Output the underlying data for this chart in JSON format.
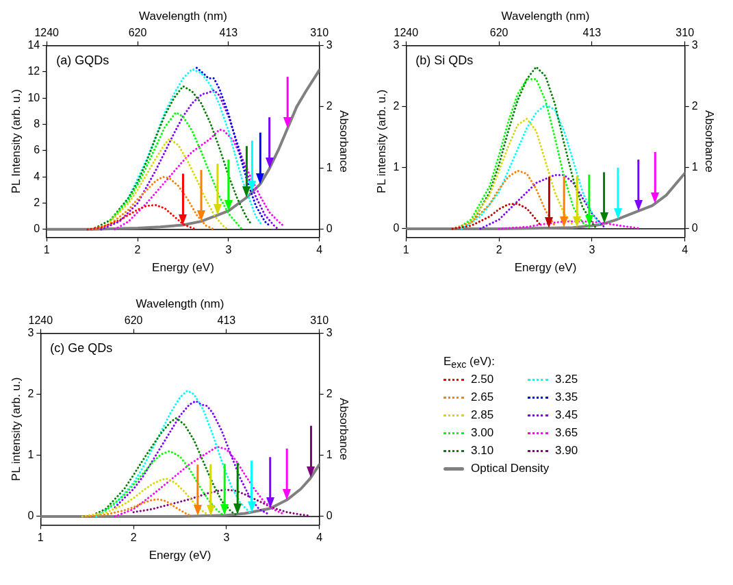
{
  "chart_data": [
    {
      "type": "line",
      "title": "(a) GQDs",
      "xlabel": "Energy (eV)",
      "x2label": "Wavelength (nm)",
      "ylabel": "PL Intensity (arb. u.)",
      "y2label": "Absorbance",
      "line_style": "dotted",
      "annotations": [
        "1240",
        "620",
        "413",
        "310"
      ],
      "xlim": [
        1,
        4
      ],
      "xticks": [
        1,
        2,
        3,
        4
      ],
      "ylim": [
        -0.6,
        14
      ],
      "yticks": [
        0,
        2,
        4,
        6,
        8,
        10,
        12,
        14
      ],
      "y2lim": [
        -0.13,
        3
      ],
      "y2ticks": [
        0,
        1,
        2,
        3
      ],
      "series": [
        {
          "color": "#ff0000",
          "x": [
            1.45,
            1.6,
            1.8,
            1.9,
            2.0,
            2.1,
            2.2,
            2.3,
            2.4,
            2.5,
            2.6,
            2.65
          ],
          "values": [
            0,
            0.15,
            0.7,
            1.1,
            1.5,
            1.8,
            1.85,
            1.6,
            1.0,
            0.4,
            0.1,
            0
          ]
        },
        {
          "color": "#ff8000",
          "x": [
            1.5,
            1.7,
            1.9,
            2.0,
            2.1,
            2.2,
            2.28,
            2.35,
            2.45,
            2.55,
            2.65,
            2.75,
            2.84
          ],
          "values": [
            0,
            0.4,
            1.5,
            2.3,
            3.0,
            3.7,
            4.0,
            3.9,
            3.3,
            2.3,
            1.1,
            0.3,
            0
          ]
        },
        {
          "color": "#d8d800",
          "x": [
            1.7,
            1.9,
            2.0,
            2.1,
            2.2,
            2.3,
            2.35,
            2.45,
            2.55,
            2.65,
            2.75,
            2.85,
            2.95,
            3.0
          ],
          "values": [
            0.6,
            2.0,
            3.0,
            4.2,
            5.4,
            6.5,
            6.9,
            6.4,
            5.2,
            3.8,
            2.3,
            1.0,
            0.2,
            0
          ]
        },
        {
          "color": "#00ff00",
          "x": [
            1.7,
            1.9,
            2.0,
            2.1,
            2.2,
            2.3,
            2.42,
            2.5,
            2.6,
            2.7,
            2.8,
            2.9,
            3.0,
            3.1,
            3.15
          ],
          "values": [
            0.7,
            2.2,
            3.4,
            4.8,
            6.3,
            7.8,
            8.9,
            8.6,
            7.5,
            5.9,
            4.2,
            2.5,
            1.2,
            0.4,
            0
          ]
        },
        {
          "color": "#008000",
          "x": [
            1.5,
            1.7,
            1.9,
            2.0,
            2.1,
            2.2,
            2.3,
            2.4,
            2.5,
            2.6,
            2.7,
            2.8,
            2.9,
            3.0,
            3.1,
            3.2,
            3.25
          ],
          "values": [
            0,
            0.7,
            2.4,
            3.6,
            5.2,
            7.0,
            8.7,
            10.0,
            10.9,
            10.5,
            9.6,
            8.1,
            6.2,
            4.1,
            2.3,
            0.9,
            0.4
          ]
        },
        {
          "color": "#00ffff",
          "x": [
            1.8,
            1.9,
            2.1,
            2.3,
            2.4,
            2.5,
            2.6,
            2.7,
            2.8,
            2.9,
            3.0,
            3.1,
            3.15,
            3.3,
            3.37
          ],
          "values": [
            1.5,
            2.4,
            5.3,
            8.9,
            10.3,
            11.5,
            12.2,
            11.9,
            11.0,
            9.5,
            7.5,
            5.0,
            3.8,
            1.0,
            0.3
          ]
        },
        {
          "color": "#0000ff",
          "x": [
            2.65,
            2.72,
            2.78,
            2.84,
            2.9,
            3.0,
            3.1,
            3.2,
            3.3,
            3.4,
            3.45
          ],
          "values": [
            12.3,
            11.9,
            11.5,
            11.5,
            10.7,
            8.8,
            6.3,
            3.8,
            1.8,
            0.6,
            0.3
          ]
        },
        {
          "color": "#8000ff",
          "x": [
            1.6,
            1.8,
            2.0,
            2.2,
            2.4,
            2.5,
            2.6,
            2.71,
            2.78,
            2.84,
            2.9,
            3.0,
            3.1,
            3.2,
            3.3,
            3.4,
            3.5,
            3.55
          ],
          "values": [
            0,
            0.6,
            2.0,
            4.5,
            7.3,
            8.6,
            9.6,
            10.3,
            10.4,
            10.6,
            10.2,
            8.6,
            6.5,
            4.3,
            2.5,
            1.1,
            0.3,
            0
          ]
        },
        {
          "color": "#ff00ff",
          "x": [
            1.75,
            1.9,
            2.1,
            2.3,
            2.5,
            2.6,
            2.7,
            2.8,
            2.9,
            2.95,
            3.05,
            3.15,
            3.25,
            3.35,
            3.45,
            3.55,
            3.6
          ],
          "values": [
            0,
            0.6,
            2.0,
            3.6,
            5.2,
            5.9,
            6.4,
            6.9,
            7.6,
            7.5,
            6.8,
            5.4,
            3.9,
            2.5,
            1.3,
            0.6,
            0.3
          ]
        },
        {
          "color": "#808080",
          "axis": "y2",
          "line_style": "solid",
          "x": [
            1.0,
            1.5,
            2.0,
            2.25,
            2.5,
            2.7,
            3.0,
            3.2,
            3.35,
            3.45,
            3.55,
            3.75,
            3.85,
            4.0
          ],
          "values": [
            0,
            0,
            0.02,
            0.04,
            0.07,
            0.13,
            0.3,
            0.52,
            0.74,
            0.99,
            1.3,
            2.0,
            2.25,
            2.6
          ]
        }
      ],
      "ref_lines": [
        {
          "axis": "y",
          "value": 0,
          "color": "#000000"
        },
        {
          "axis": "x",
          "value": 2.5,
          "color": "#ff0000"
        },
        {
          "axis": "x",
          "value": 2.7,
          "color": "#ff8000"
        },
        {
          "axis": "x",
          "value": 2.88,
          "color": "#d8d800"
        },
        {
          "axis": "x",
          "value": 3.0,
          "color": "#00ff00"
        },
        {
          "axis": "x",
          "value": 3.2,
          "color": "#008000"
        },
        {
          "axis": "x",
          "value": 3.26,
          "color": "#00ffff"
        },
        {
          "axis": "x",
          "value": 3.35,
          "color": "#0000ff"
        },
        {
          "axis": "x",
          "value": 3.45,
          "color": "#8000ff"
        },
        {
          "axis": "x",
          "value": 3.65,
          "color": "#ff00ff"
        }
      ]
    },
    {
      "type": "line",
      "title": "(b) Si QDs",
      "xlabel": "Energy (eV)",
      "x2label": "Wavelength (nm)",
      "ylabel": "PL intensity (arb. u.)",
      "y2label": "Absorbance",
      "line_style": "dotted",
      "annotations": [
        "1240",
        "620",
        "413",
        "310"
      ],
      "xlim": [
        1,
        4
      ],
      "xticks": [
        1,
        2,
        3,
        4
      ],
      "ylim": [
        -0.14,
        3
      ],
      "yticks": [
        0,
        1,
        2,
        3
      ],
      "y2lim": [
        -0.14,
        3
      ],
      "y2ticks": [
        0,
        1,
        2,
        3
      ],
      "series": [
        {
          "color": "#c00000",
          "x": [
            1.5,
            1.7,
            1.9,
            2.0,
            2.1,
            2.2,
            2.3,
            2.4,
            2.45
          ],
          "values": [
            0,
            0.05,
            0.2,
            0.32,
            0.4,
            0.41,
            0.33,
            0.15,
            0.05
          ]
        },
        {
          "color": "#ff8000",
          "x": [
            1.5,
            1.7,
            1.9,
            2.0,
            2.1,
            2.2,
            2.3,
            2.4,
            2.5,
            2.6
          ],
          "values": [
            0,
            0.1,
            0.4,
            0.65,
            0.85,
            0.95,
            0.9,
            0.65,
            0.3,
            0.05
          ]
        },
        {
          "color": "#d8d800",
          "x": [
            1.7,
            1.9,
            2.0,
            2.1,
            2.2,
            2.3,
            2.4,
            2.5,
            2.6,
            2.7,
            2.8
          ],
          "values": [
            0.12,
            0.55,
            0.95,
            1.35,
            1.7,
            1.8,
            1.6,
            1.1,
            0.6,
            0.25,
            0.05
          ]
        },
        {
          "color": "#00ff00",
          "x": [
            1.6,
            1.7,
            1.9,
            2.0,
            2.1,
            2.2,
            2.3,
            2.4,
            2.5,
            2.6,
            2.7,
            2.8,
            2.9,
            3.0
          ],
          "values": [
            0.05,
            0.15,
            0.7,
            1.2,
            1.75,
            2.2,
            2.45,
            2.45,
            2.1,
            1.5,
            0.85,
            0.35,
            0.1,
            0
          ]
        },
        {
          "color": "#008000",
          "x": [
            1.75,
            1.9,
            2.0,
            2.1,
            2.2,
            2.3,
            2.4,
            2.5,
            2.6,
            2.7,
            2.8,
            2.9,
            3.0,
            3.05
          ],
          "values": [
            0.2,
            0.6,
            1.05,
            1.6,
            2.1,
            2.45,
            2.65,
            2.5,
            2.05,
            1.4,
            0.8,
            0.35,
            0.1,
            0
          ]
        },
        {
          "color": "#00ffff",
          "x": [
            1.6,
            1.8,
            2.0,
            2.1,
            2.2,
            2.3,
            2.4,
            2.5,
            2.6,
            2.7,
            2.8,
            2.9,
            3.0,
            3.1
          ],
          "values": [
            0,
            0.2,
            0.6,
            0.95,
            1.3,
            1.65,
            1.9,
            2.03,
            1.95,
            1.6,
            1.1,
            0.6,
            0.25,
            0.05
          ]
        },
        {
          "color": "#8000ff",
          "x": [
            1.8,
            2.0,
            2.2,
            2.4,
            2.6,
            2.7,
            2.8,
            2.9,
            3.0,
            3.1,
            3.15
          ],
          "values": [
            0,
            0.15,
            0.45,
            0.75,
            0.88,
            0.88,
            0.75,
            0.5,
            0.25,
            0.08,
            0
          ]
        },
        {
          "color": "#ff00ff",
          "x": [
            2.0,
            2.3,
            2.5,
            2.7,
            2.9,
            3.1,
            3.3,
            3.5
          ],
          "values": [
            0,
            0.03,
            0.08,
            0.12,
            0.12,
            0.1,
            0.05,
            0.01
          ]
        },
        {
          "color": "#808080",
          "axis": "y2",
          "line_style": "solid",
          "x": [
            1.0,
            2.0,
            2.5,
            2.8,
            3.0,
            3.1,
            3.25,
            3.45,
            3.65,
            3.8,
            4.0
          ],
          "values": [
            0,
            0,
            0.01,
            0.02,
            0.05,
            0.07,
            0.14,
            0.26,
            0.38,
            0.55,
            0.91
          ]
        }
      ],
      "ref_lines": [
        {
          "axis": "y",
          "value": 0,
          "color": "#000000"
        },
        {
          "axis": "x",
          "value": 2.54,
          "color": "#c00000"
        },
        {
          "axis": "x",
          "value": 2.7,
          "color": "#ff8000"
        },
        {
          "axis": "x",
          "value": 2.84,
          "color": "#d8d800"
        },
        {
          "axis": "x",
          "value": 2.97,
          "color": "#00ff00"
        },
        {
          "axis": "x",
          "value": 3.13,
          "color": "#008000"
        },
        {
          "axis": "x",
          "value": 3.28,
          "color": "#00ffff"
        },
        {
          "axis": "x",
          "value": 3.5,
          "color": "#8000ff"
        },
        {
          "axis": "x",
          "value": 3.68,
          "color": "#ff00ff"
        }
      ]
    },
    {
      "type": "line",
      "title": "(c) Ge QDs",
      "xlabel": "Energy (eV)",
      "x2label": "Wavelength (nm)",
      "ylabel": "PL intensity (arb. u.)",
      "y2label": "Absorbance",
      "line_style": "dotted",
      "legend": "right",
      "legend_title": "E$_{exc}$ (eV):",
      "annotations": [
        "1240",
        "620",
        "413",
        "310"
      ],
      "xlim": [
        1,
        4
      ],
      "xticks": [
        1,
        2,
        3,
        4
      ],
      "ylim": [
        -0.14,
        3
      ],
      "yticks": [
        0,
        1,
        2,
        3
      ],
      "y2lim": [
        -0.14,
        3
      ],
      "y2ticks": [
        0,
        1,
        2,
        3
      ],
      "series": [
        {
          "name": "2.50",
          "color": "#ff0000"
        },
        {
          "name": "2.65",
          "color": "#ff8000",
          "x": [
            1.5,
            1.7,
            1.9,
            2.0,
            2.1,
            2.2,
            2.27,
            2.35,
            2.45,
            2.55,
            2.6
          ],
          "values": [
            0,
            0.03,
            0.1,
            0.15,
            0.22,
            0.27,
            0.28,
            0.25,
            0.15,
            0.06,
            0.02
          ]
        },
        {
          "name": "2.85",
          "color": "#d8d800",
          "x": [
            1.45,
            1.7,
            1.9,
            2.0,
            2.1,
            2.2,
            2.3,
            2.35,
            2.45,
            2.55,
            2.65,
            2.75,
            2.8
          ],
          "values": [
            0,
            0.06,
            0.2,
            0.3,
            0.42,
            0.53,
            0.6,
            0.62,
            0.55,
            0.4,
            0.22,
            0.08,
            0.03
          ]
        },
        {
          "name": "3.00",
          "color": "#00ff00",
          "x": [
            1.7,
            1.9,
            2.0,
            2.1,
            2.2,
            2.3,
            2.39,
            2.5,
            2.6,
            2.7,
            2.8,
            2.9,
            2.95
          ],
          "values": [
            0.1,
            0.35,
            0.52,
            0.7,
            0.88,
            1.02,
            1.07,
            0.98,
            0.78,
            0.52,
            0.28,
            0.1,
            0.04
          ]
        },
        {
          "name": "3.10",
          "color": "#008000",
          "x": [
            1.6,
            1.7,
            1.9,
            2.0,
            2.1,
            2.2,
            2.3,
            2.4,
            2.46,
            2.55,
            2.65,
            2.75,
            2.85,
            2.95,
            3.05,
            3.1
          ],
          "values": [
            0.05,
            0.12,
            0.45,
            0.68,
            0.92,
            1.15,
            1.37,
            1.55,
            1.61,
            1.5,
            1.25,
            0.9,
            0.55,
            0.25,
            0.08,
            0.03
          ]
        },
        {
          "name": "3.25",
          "color": "#00ffff",
          "x": [
            1.6,
            1.8,
            2.0,
            2.1,
            2.2,
            2.3,
            2.4,
            2.5,
            2.58,
            2.65,
            2.75,
            2.85,
            2.95,
            3.05,
            3.15,
            3.25
          ],
          "values": [
            0,
            0.2,
            0.55,
            0.8,
            1.1,
            1.4,
            1.7,
            1.95,
            2.06,
            2.0,
            1.75,
            1.35,
            0.9,
            0.5,
            0.22,
            0.07
          ]
        },
        {
          "name": "3.35",
          "color": "#0000ff"
        },
        {
          "name": "3.45",
          "color": "#8000ff",
          "x": [
            1.8,
            2.0,
            2.1,
            2.2,
            2.3,
            2.4,
            2.5,
            2.6,
            2.67,
            2.73,
            2.79,
            2.85,
            2.95,
            3.05,
            3.15,
            3.25,
            3.35,
            3.45
          ],
          "values": [
            0.15,
            0.45,
            0.65,
            0.9,
            1.15,
            1.4,
            1.65,
            1.83,
            1.89,
            1.83,
            1.81,
            1.7,
            1.4,
            1.0,
            0.62,
            0.32,
            0.12,
            0.04
          ]
        },
        {
          "name": "3.65",
          "color": "#ff00ff",
          "x": [
            1.8,
            2.0,
            2.2,
            2.4,
            2.6,
            2.75,
            2.9,
            3.0,
            3.1,
            3.2,
            3.3,
            3.4,
            3.5,
            3.6
          ],
          "values": [
            0,
            0.12,
            0.35,
            0.6,
            0.85,
            1.0,
            1.14,
            1.1,
            0.92,
            0.68,
            0.45,
            0.25,
            0.12,
            0.05
          ]
        },
        {
          "name": "3.90",
          "color": "#800080",
          "x": [
            2.0,
            2.2,
            2.4,
            2.6,
            2.8,
            2.98,
            3.1,
            3.2,
            3.35,
            3.5,
            3.65,
            3.8,
            3.9
          ],
          "values": [
            0.07,
            0.12,
            0.2,
            0.28,
            0.38,
            0.44,
            0.42,
            0.36,
            0.25,
            0.14,
            0.07,
            0.03,
            0.01
          ]
        },
        {
          "name": "Optical Density",
          "color": "#808080",
          "axis": "y2",
          "line_style": "solid",
          "x": [
            1.0,
            2.5,
            3.0,
            3.2,
            3.47,
            3.65,
            3.8,
            3.9,
            4.0
          ],
          "values": [
            0,
            0,
            0.02,
            0.05,
            0.13,
            0.27,
            0.45,
            0.62,
            0.85
          ]
        }
      ],
      "ref_lines": [
        {
          "axis": "y",
          "value": 0,
          "color": "#000000"
        },
        {
          "axis": "x",
          "value": 2.69,
          "color": "#ff8000"
        },
        {
          "axis": "x",
          "value": 2.83,
          "color": "#d8d800"
        },
        {
          "axis": "x",
          "value": 2.98,
          "color": "#00ff00"
        },
        {
          "axis": "x",
          "value": 3.12,
          "color": "#008000"
        },
        {
          "axis": "x",
          "value": 3.27,
          "color": "#00ffff"
        },
        {
          "axis": "x",
          "value": 3.47,
          "color": "#8000ff"
        },
        {
          "axis": "x",
          "value": 3.65,
          "color": "#ff00ff"
        },
        {
          "axis": "x",
          "value": 3.91,
          "color": "#800080"
        }
      ]
    }
  ]
}
